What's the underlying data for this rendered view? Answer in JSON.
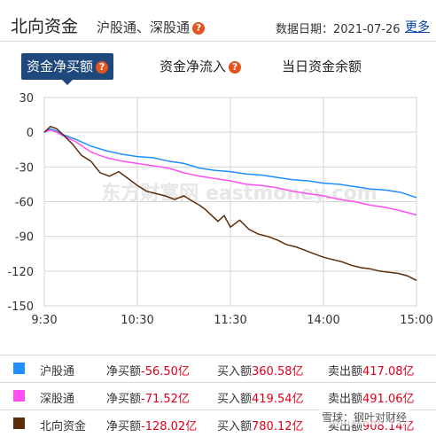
{
  "header": {
    "title": "北向资金",
    "subtitle": "沪股通、深股通",
    "help_icon": "question-icon",
    "date_label": "数据日期：2021-07-26",
    "more_link": "更多"
  },
  "tabs": [
    {
      "label": "资金净买额",
      "active": true,
      "has_help": true
    },
    {
      "label": "资金净流入",
      "active": false,
      "has_help": true
    },
    {
      "label": "当日资金余额",
      "active": false,
      "has_help": false
    }
  ],
  "chart_data": {
    "type": "line",
    "title": "",
    "xlabel": "",
    "ylabel": "",
    "ylim": [
      -150,
      30
    ],
    "yticks": [
      30,
      0,
      -30,
      -60,
      -90,
      -120,
      -150
    ],
    "xticks": [
      "9:30",
      "10:30",
      "11:30",
      "14:00",
      "15:00"
    ],
    "grid": true,
    "watermark": "东方财富网 eastmoney.com",
    "series": [
      {
        "name": "沪股通",
        "color": "#1e90ff",
        "x": [
          0,
          4,
          8,
          12,
          20,
          30,
          40,
          50,
          60,
          70,
          80,
          90,
          100,
          110,
          120,
          130,
          140,
          150,
          160,
          170,
          180,
          190,
          200,
          210,
          220,
          230,
          240
        ],
        "values": [
          0,
          3,
          1,
          -2,
          -6,
          -12,
          -16,
          -19,
          -21,
          -22,
          -25,
          -27,
          -31,
          -33,
          -34,
          -36,
          -37,
          -39,
          -41,
          -42,
          -44,
          -45,
          -47,
          -49,
          -50,
          -52,
          -56.5
        ]
      },
      {
        "name": "深股通",
        "color": "#ff4ff3",
        "x": [
          0,
          4,
          8,
          12,
          20,
          30,
          40,
          50,
          60,
          70,
          80,
          90,
          100,
          110,
          120,
          130,
          140,
          150,
          160,
          170,
          180,
          190,
          200,
          210,
          220,
          230,
          240
        ],
        "values": [
          0,
          2,
          0,
          -3,
          -8,
          -17,
          -22,
          -25,
          -27,
          -29,
          -31,
          -35,
          -38,
          -40,
          -42,
          -45,
          -46,
          -48,
          -51,
          -53,
          -55,
          -58,
          -60,
          -63,
          -65,
          -68,
          -71.52
        ]
      },
      {
        "name": "北向资金",
        "color": "#5c2d0a",
        "x": [
          0,
          4,
          8,
          12,
          18,
          24,
          30,
          36,
          42,
          48,
          54,
          60,
          66,
          72,
          78,
          84,
          90,
          96,
          100,
          104,
          108,
          112,
          116,
          120,
          126,
          132,
          138,
          144,
          150,
          156,
          162,
          168,
          174,
          180,
          186,
          192,
          198,
          204,
          210,
          216,
          222,
          228,
          234,
          240
        ],
        "values": [
          0,
          5,
          3,
          -2,
          -10,
          -20,
          -25,
          -35,
          -38,
          -34,
          -40,
          -46,
          -51,
          -53,
          -55,
          -58,
          -55,
          -60,
          -63,
          -67,
          -72,
          -77,
          -72,
          -82,
          -76,
          -84,
          -88,
          -90,
          -93,
          -97,
          -99,
          -102,
          -105,
          -108,
          -110,
          -112,
          -115,
          -117,
          -118,
          -120,
          -121,
          -122,
          -124,
          -128.02
        ]
      }
    ]
  },
  "legend": [
    {
      "name": "沪股通",
      "color": "#1e90ff",
      "net_label": "净买额",
      "net_value": "-56.50亿",
      "buy_label": "买入额",
      "buy_value": "360.58亿",
      "sell_label": "卖出额",
      "sell_value": "417.08亿"
    },
    {
      "name": "深股通",
      "color": "#ff4ff3",
      "net_label": "净买额",
      "net_value": "-71.52亿",
      "buy_label": "买入额",
      "buy_value": "419.54亿",
      "sell_label": "卖出额",
      "sell_value": "491.06亿"
    },
    {
      "name": "北向资金",
      "color": "#5c2d0a",
      "net_label": "净买额",
      "net_value": "-128.02亿",
      "buy_label": "买入额",
      "buy_value": "780.12亿",
      "sell_label": "卖出额",
      "sell_value": "908.14亿"
    }
  ],
  "overlay_watermark": "雪球：钢叶对财经"
}
